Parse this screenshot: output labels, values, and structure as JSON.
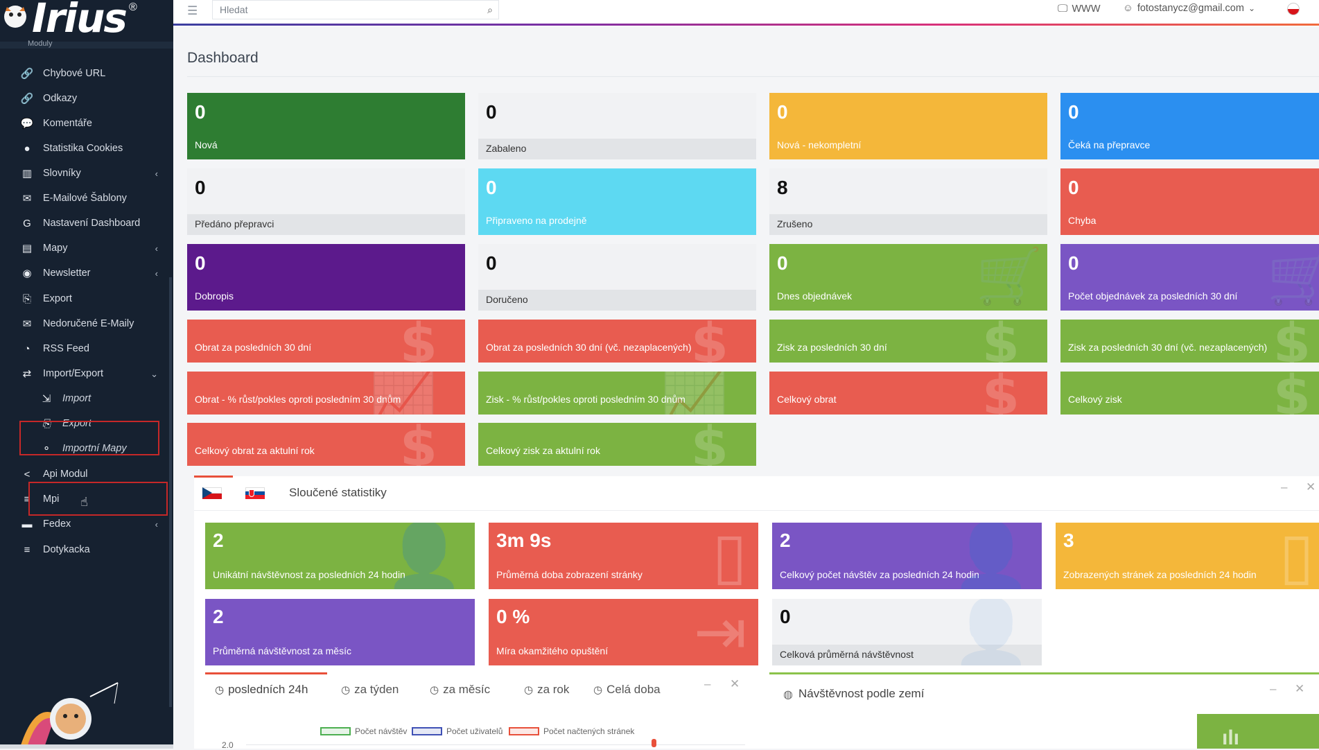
{
  "app": {
    "logo_text": "Irius",
    "logo_reg": "®"
  },
  "sidebar": {
    "partial_top": "Moduly",
    "items": [
      {
        "label": "Chybové URL",
        "icon": "link-icon"
      },
      {
        "label": "Odkazy",
        "icon": "link-icon"
      },
      {
        "label": "Komentáře",
        "icon": "comments-icon"
      },
      {
        "label": "Statistika Cookies",
        "icon": "cookie-icon"
      },
      {
        "label": "Slovníky",
        "icon": "books-icon",
        "chevron": "‹"
      },
      {
        "label": "E-Mailové Šablony",
        "icon": "envelope-icon"
      },
      {
        "label": "Nastavení Dashboard",
        "icon": "g-icon"
      },
      {
        "label": "Mapy",
        "icon": "map-icon",
        "chevron": "‹"
      },
      {
        "label": "Newsletter",
        "icon": "newsletter-icon",
        "chevron": "‹"
      },
      {
        "label": "Export",
        "icon": "file-export-icon"
      },
      {
        "label": "Nedoručené E-Maily",
        "icon": "mail-bounce-icon"
      },
      {
        "label": "RSS Feed",
        "icon": "rss-icon"
      },
      {
        "label": "Import/Export",
        "icon": "exchange-icon",
        "chevron": "⌄"
      },
      {
        "label": "Import",
        "icon": "file-import-icon",
        "sub": true
      },
      {
        "label": "Export",
        "icon": "file-export-icon",
        "sub": true
      },
      {
        "label": "Importní Mapy",
        "icon": "sitemap-icon",
        "sub": true
      },
      {
        "label": "Api Modul",
        "icon": "share-icon"
      },
      {
        "label": "Mpi",
        "icon": "sliders-icon"
      },
      {
        "label": "Fedex",
        "icon": "truck-icon",
        "chevron": "‹"
      },
      {
        "label": "Dotykacka",
        "icon": "sliders-icon"
      }
    ]
  },
  "topbar": {
    "search_placeholder": "Hledat",
    "www_label": "WWW",
    "user_email": "fotostanycz@gmail.com"
  },
  "page": {
    "title": "Dashboard"
  },
  "order_cards": [
    {
      "value": "0",
      "label": "Nová",
      "color": "#2e7d32"
    },
    {
      "value": "0",
      "label": "Zabaleno",
      "color": "light"
    },
    {
      "value": "0",
      "label": "Nová - nekompletní",
      "color": "#f4b73a"
    },
    {
      "value": "0",
      "label": "Čeká na přepravce",
      "color": "#2b8ff0"
    },
    {
      "value": "0",
      "label": "Předáno přepravci",
      "color": "light"
    },
    {
      "value": "0",
      "label": "Připraveno na prodejně",
      "color": "#5dd9f2"
    },
    {
      "value": "8",
      "label": "Zrušeno",
      "color": "light"
    },
    {
      "value": "0",
      "label": "Chyba",
      "color": "#e85c50"
    },
    {
      "value": "0",
      "label": "Dobropis",
      "color": "#5c1a8c"
    },
    {
      "value": "0",
      "label": "Doručeno",
      "color": "light"
    },
    {
      "value": "0",
      "label": "Dnes objednávek",
      "color": "#7cb342"
    },
    {
      "value": "0",
      "label": "Počet objednávek za posledních 30 dní",
      "color": "#7a55c4"
    }
  ],
  "finance_cards": [
    {
      "label": "Obrat za posledních 30 dní",
      "color": "#e85c50"
    },
    {
      "label": "Obrat za posledních 30 dní (vč. nezaplacených)",
      "color": "#e85c50"
    },
    {
      "label": "Zisk za posledních 30 dní",
      "color": "#7cb342"
    },
    {
      "label": "Zisk za posledních 30 dní (vč. nezaplacených)",
      "color": "#7cb342"
    },
    {
      "label": "Obrat - % růst/pokles oproti posledním 30 dnům",
      "color": "#e85c50"
    },
    {
      "label": "Zisk - % růst/pokles oproti posledním 30 dnům",
      "color": "#7cb342"
    },
    {
      "label": "Celkový obrat",
      "color": "#e85c50"
    },
    {
      "label": "Celkový zisk",
      "color": "#7cb342"
    },
    {
      "label": "Celkový obrat za aktulní rok",
      "color": "#e85c50"
    },
    {
      "label": "Celkový zisk za aktulní rok",
      "color": "#7cb342"
    }
  ],
  "stats_panel": {
    "title": "Sloučené statistiky",
    "cards": [
      {
        "value": "2",
        "label": "Unikátní návštěvnost za posledních 24 hodin",
        "color": "#7cb342"
      },
      {
        "value": "3m 9s",
        "label": "Průměrná doba zobrazení stránky",
        "color": "#e85c50"
      },
      {
        "value": "2",
        "label": "Celkový počet návštěv za posledních 24 hodin",
        "color": "#7a55c4"
      },
      {
        "value": "3",
        "label": "Zobrazených stránek za posledních 24 hodin",
        "color": "#f4b73a"
      },
      {
        "value": "2",
        "label": "Průměrná návštěvnost za měsíc",
        "color": "#7a55c4"
      },
      {
        "value": "0 %",
        "label": "Míra okamžitého opuštění",
        "color": "#e85c50"
      },
      {
        "value": "0",
        "label": "Celková průměrná návštěvnost",
        "color": "light"
      }
    ]
  },
  "time_tabs": [
    "posledních 24h",
    "za týden",
    "za měsíc",
    "za rok",
    "Celá doba"
  ],
  "chart_legend": [
    {
      "label": "Počet návštěv",
      "color": "#4caf50"
    },
    {
      "label": "Počet uživatelů",
      "color": "#3f51b5"
    },
    {
      "label": "Počet načtených stránek",
      "color": "#e8503a"
    }
  ],
  "chart_y_label": "2.0",
  "country_panel": {
    "title": "Návštěvnost podle zemí"
  }
}
